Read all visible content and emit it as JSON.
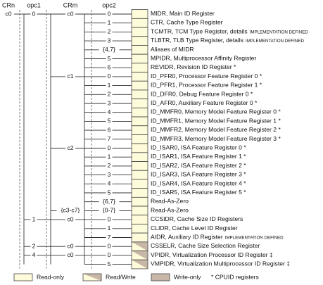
{
  "headers": [
    "CRn",
    "opc1",
    "CRm",
    "opc2"
  ],
  "rows": [
    {
      "crn": "c0",
      "opc1": "0",
      "crm": "c0",
      "opc2": "0",
      "text": "MIDR, Main ID Register",
      "access": "ro"
    },
    {
      "opc2": "1",
      "text": "CTR, Cache Type Register",
      "access": "ro"
    },
    {
      "opc2": "2",
      "text": "TCMTR, TCM Type Register, details",
      "note": "IMPLEMENTATION DEFINED",
      "access": "ro"
    },
    {
      "opc2": "3",
      "text": "TLBTR, TLB Type Register, details",
      "note": "IMPLEMENTATION DEFINED",
      "access": "ro"
    },
    {
      "opc2": "{4,7}",
      "text": "Aliases of MIDR",
      "access": "ro"
    },
    {
      "opc2": "5",
      "text": "MPIDR, Multiprocessor Affinity Register",
      "access": "ro"
    },
    {
      "opc2": "6",
      "text": "REVIDR, Revision ID Register *",
      "access": "ro"
    },
    {
      "crm": "c1",
      "opc2": "0",
      "text": "ID_PFR0, Processor Feature Register 0 *",
      "access": "ro"
    },
    {
      "opc2": "1",
      "text": "ID_PFR1, Processor Feature Register 1 *",
      "access": "ro"
    },
    {
      "opc2": "2",
      "text": "ID_DFR0, Debug Feature Register 0 *",
      "access": "ro"
    },
    {
      "opc2": "3",
      "text": "ID_AFR0, Auxiliary Feature Register 0 *",
      "access": "ro"
    },
    {
      "opc2": "4",
      "text": "ID_MMFR0, Memory Model Feature Register 0 *",
      "access": "ro"
    },
    {
      "opc2": "5",
      "text": "ID_MMFR1, Memory Model Feature Register 1 *",
      "access": "ro"
    },
    {
      "opc2": "6",
      "text": "ID_MMFR2, Memory Model Feature Register 2 *",
      "access": "ro"
    },
    {
      "opc2": "7",
      "text": "ID_MMFR3, Memory Model Feature Register 3 *",
      "access": "ro"
    },
    {
      "crm": "c2",
      "opc2": "0",
      "text": "ID_ISAR0, ISA Feature Register 0 *",
      "access": "ro"
    },
    {
      "opc2": "1",
      "text": "ID_ISAR1, ISA Feature Register 1 *",
      "access": "ro"
    },
    {
      "opc2": "2",
      "text": "ID_ISAR2, ISA Feature Register 2 *",
      "access": "ro"
    },
    {
      "opc2": "3",
      "text": "ID_ISAR3, ISA Feature Register 3 *",
      "access": "ro"
    },
    {
      "opc2": "4",
      "text": "ID_ISAR4, ISA Feature Register 4 *",
      "access": "ro"
    },
    {
      "opc2": "5",
      "text": "ID_ISAR5, ISA Feature Register 5 *",
      "access": "ro"
    },
    {
      "opc2": "{6,7}",
      "text": "Read-As-Zero",
      "access": "ro"
    },
    {
      "crm": "{c3-c7}",
      "opc2": "{0-7}",
      "text": "Read-As-Zero",
      "access": "ro"
    },
    {
      "opc1": "1",
      "crm": "c0",
      "opc2": "0",
      "text": "CCSIDR, Cache Size ID Registers",
      "access": "ro"
    },
    {
      "opc2": "1",
      "text": "CLIDR, Cache Level ID Register",
      "access": "ro"
    },
    {
      "opc2": "7",
      "text": "AIDR, Auxiliary ID Register",
      "note": "IMPLEMENTATION DEFINED",
      "access": "ro"
    },
    {
      "opc1": "2",
      "crm": "c0",
      "opc2": "0",
      "text": "CSSELR, Cache Size Selection Register",
      "access": "rw"
    },
    {
      "opc1": "4",
      "crm": "c0",
      "opc2": "0",
      "text": "VPIDR, Virtualization Processor ID Register ‡",
      "access": "rw"
    },
    {
      "opc2": "5",
      "text": "VMPIDR, Virtualization Multiprocessor ID Register ‡",
      "access": "rw"
    }
  ],
  "legend": [
    {
      "label": "Read-only",
      "access": "ro"
    },
    {
      "label": "Read/Write",
      "access": "rw"
    },
    {
      "label": "Write-only",
      "access": "wo"
    }
  ],
  "legend_note": "* CPUID registers"
}
